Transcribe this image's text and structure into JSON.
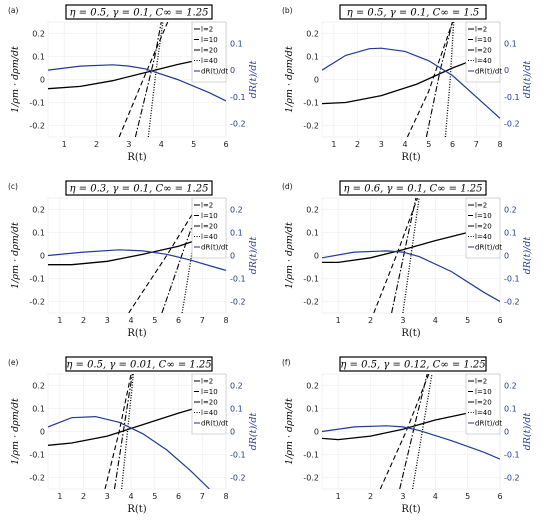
{
  "figure": {
    "right_axis_color": "#1f3a93",
    "left_axis_color": "#000000"
  },
  "chart_data": [
    {
      "type": "line",
      "panel_label": "(a)",
      "title": "η = 0.5, γ = 0.1, C∞ = 1.25",
      "xlabel": "R(t)",
      "ylabel_left": "1/ρm · dρm/dt",
      "ylabel_right": "dR(t)/dt",
      "xlim": [
        0.5,
        6
      ],
      "ylim_left": [
        -0.25,
        0.25
      ],
      "ylim_right": [
        -0.25,
        0.18
      ],
      "x_ticks": [
        1,
        2,
        3,
        4,
        5,
        6
      ],
      "y_ticks_left": [
        -0.2,
        -0.1,
        0,
        0.1,
        0.2
      ],
      "y_ticks_right": [
        -0.2,
        -0.1,
        0,
        0.1
      ],
      "legend": [
        "l=2",
        "l=10",
        "l=20",
        "l=40",
        "dR(t)/dt"
      ],
      "series": [
        {
          "name": "l=2",
          "style": "solid",
          "width": 1.3,
          "axis": "left",
          "x": [
            0.5,
            1.5,
            2.5,
            3.5,
            4.5,
            5.5,
            6.0
          ],
          "values": [
            -0.04,
            -0.03,
            -0.005,
            0.03,
            0.065,
            0.095,
            0.11
          ]
        },
        {
          "name": "l=10",
          "style": "dashed",
          "width": 1.1,
          "axis": "left",
          "x": [
            2.7,
            3.5,
            4.2
          ],
          "values": [
            -0.25,
            0.02,
            0.25
          ]
        },
        {
          "name": "l=20",
          "style": "dashdot",
          "width": 1.1,
          "axis": "left",
          "x": [
            3.2,
            3.8,
            4.0
          ],
          "values": [
            -0.25,
            0.1,
            0.25
          ]
        },
        {
          "name": "l=40",
          "style": "dotted",
          "width": 1.3,
          "axis": "left",
          "x": [
            3.6,
            3.85,
            4.05
          ],
          "values": [
            -0.25,
            0.05,
            0.25
          ]
        },
        {
          "name": "dR(t)/dt",
          "style": "solid",
          "width": 1.2,
          "axis": "right",
          "x": [
            0.5,
            1.5,
            2.5,
            3.0,
            3.5,
            4.5,
            5.5,
            6.0
          ],
          "values": [
            0.0,
            0.015,
            0.02,
            0.015,
            0.005,
            -0.035,
            -0.085,
            -0.115
          ]
        }
      ]
    },
    {
      "type": "line",
      "panel_label": "(b)",
      "title": "η = 0.5, γ = 0.1, C∞ = 1.5",
      "xlabel": "R(t)",
      "ylabel_left": "1/ρm · dρm/dt",
      "ylabel_right": "dR(t)/dt",
      "xlim": [
        0.5,
        8
      ],
      "ylim_left": [
        -0.25,
        0.25
      ],
      "ylim_right": [
        -0.25,
        0.18
      ],
      "x_ticks": [
        1,
        2,
        3,
        4,
        5,
        6,
        7,
        8
      ],
      "y_ticks_left": [
        -0.2,
        -0.1,
        0,
        0.1,
        0.2
      ],
      "y_ticks_right": [
        -0.2,
        -0.1,
        0,
        0.1
      ],
      "legend": [
        "l=2",
        "l=10",
        "l=20",
        "l=40",
        "dR(t)/dt"
      ],
      "series": [
        {
          "name": "l=2",
          "style": "solid",
          "width": 1.3,
          "axis": "left",
          "x": [
            0.5,
            1.5,
            3.0,
            4.5,
            6.0,
            7.0,
            8.0
          ],
          "values": [
            -0.105,
            -0.1,
            -0.07,
            -0.02,
            0.05,
            0.09,
            0.125
          ]
        },
        {
          "name": "l=10",
          "style": "dashed",
          "width": 1.1,
          "axis": "left",
          "x": [
            4.1,
            5.0,
            6.0
          ],
          "values": [
            -0.25,
            -0.05,
            0.25
          ]
        },
        {
          "name": "l=20",
          "style": "dashdot",
          "width": 1.1,
          "axis": "left",
          "x": [
            4.9,
            5.5,
            6.0
          ],
          "values": [
            -0.25,
            0.05,
            0.25
          ]
        },
        {
          "name": "l=40",
          "style": "dotted",
          "width": 1.3,
          "axis": "left",
          "x": [
            5.7,
            5.9,
            6.05
          ],
          "values": [
            -0.25,
            0.0,
            0.25
          ]
        },
        {
          "name": "dR(t)/dt",
          "style": "solid",
          "width": 1.2,
          "axis": "right",
          "x": [
            0.5,
            1.5,
            2.5,
            3.0,
            4.0,
            5.0,
            6.0,
            7.0,
            8.0
          ],
          "values": [
            0.0,
            0.055,
            0.08,
            0.082,
            0.07,
            0.035,
            -0.02,
            -0.1,
            -0.18
          ]
        }
      ]
    },
    {
      "type": "line",
      "panel_label": "(c)",
      "title": "η = 0.3, γ = 0.1, C∞ = 1.25",
      "xlabel": "R(t)",
      "ylabel_left": "1/ρm · dρm/dt",
      "ylabel_right": "dR(t)/dt",
      "xlim": [
        0.5,
        8
      ],
      "ylim_left": [
        -0.25,
        0.25
      ],
      "ylim_right": [
        -0.25,
        0.25
      ],
      "x_ticks": [
        1,
        2,
        3,
        4,
        5,
        6,
        7,
        8
      ],
      "y_ticks_left": [
        -0.2,
        -0.1,
        0,
        0.1,
        0.2
      ],
      "y_ticks_right": [
        -0.2,
        -0.1,
        0,
        0.1,
        0.2
      ],
      "legend": [
        "l=2",
        "l=10",
        "l=20",
        "l=40",
        "dR(t)/dt"
      ],
      "series": [
        {
          "name": "l=2",
          "style": "solid",
          "width": 1.3,
          "axis": "left",
          "x": [
            0.5,
            1.5,
            3.0,
            4.5,
            6.0,
            7.0,
            8.0
          ],
          "values": [
            -0.04,
            -0.04,
            -0.025,
            0.005,
            0.04,
            0.075,
            0.11
          ]
        },
        {
          "name": "l=10",
          "style": "dashed",
          "width": 1.1,
          "axis": "left",
          "x": [
            3.9,
            5.5,
            7.0
          ],
          "values": [
            -0.25,
            0.0,
            0.25
          ]
        },
        {
          "name": "l=20",
          "style": "dashdot",
          "width": 1.1,
          "axis": "left",
          "x": [
            5.3,
            6.3,
            7.0
          ],
          "values": [
            -0.25,
            0.05,
            0.25
          ]
        },
        {
          "name": "l=40",
          "style": "dotted",
          "width": 1.3,
          "axis": "left",
          "x": [
            6.15,
            6.55,
            7.0
          ],
          "values": [
            -0.25,
            0.0,
            0.25
          ]
        },
        {
          "name": "dR(t)/dt",
          "style": "solid",
          "width": 1.2,
          "axis": "right",
          "x": [
            0.5,
            2.0,
            3.5,
            4.5,
            5.5,
            6.5,
            7.5,
            8.0
          ],
          "values": [
            0.0,
            0.015,
            0.025,
            0.02,
            0.005,
            -0.02,
            -0.05,
            -0.065
          ]
        }
      ]
    },
    {
      "type": "line",
      "panel_label": "(d)",
      "title": "η = 0.6, γ = 0.1, C∞ = 1.25",
      "xlabel": "R(t)",
      "ylabel_left": "1/ρm · dρm/dt",
      "ylabel_right": "dR(t)/dt",
      "xlim": [
        0.5,
        6
      ],
      "ylim_left": [
        -0.25,
        0.25
      ],
      "ylim_right": [
        -0.25,
        0.25
      ],
      "x_ticks": [
        1,
        2,
        3,
        4,
        5,
        6
      ],
      "y_ticks_left": [
        -0.2,
        -0.1,
        0,
        0.1,
        0.2
      ],
      "y_ticks_right": [
        -0.2,
        -0.1,
        0,
        0.1,
        0.2
      ],
      "legend": [
        "l=2",
        "l=10",
        "l=20",
        "l=40",
        "dR(t)/dt"
      ],
      "series": [
        {
          "name": "l=2",
          "style": "solid",
          "width": 1.3,
          "axis": "left",
          "x": [
            0.5,
            1.0,
            2.0,
            3.0,
            4.0,
            5.0,
            6.0
          ],
          "values": [
            -0.03,
            -0.03,
            -0.01,
            0.025,
            0.065,
            0.1,
            0.12
          ]
        },
        {
          "name": "l=10",
          "style": "dashed",
          "width": 1.1,
          "axis": "left",
          "x": [
            2.1,
            2.8,
            3.45
          ],
          "values": [
            -0.25,
            0.0,
            0.25
          ]
        },
        {
          "name": "l=20",
          "style": "dashdot",
          "width": 1.1,
          "axis": "left",
          "x": [
            2.65,
            3.1,
            3.4
          ],
          "values": [
            -0.25,
            0.05,
            0.25
          ]
        },
        {
          "name": "l=40",
          "style": "dotted",
          "width": 1.3,
          "axis": "left",
          "x": [
            3.0,
            3.25,
            3.5
          ],
          "values": [
            -0.25,
            0.0,
            0.25
          ]
        },
        {
          "name": "dR(t)/dt",
          "style": "solid",
          "width": 1.2,
          "axis": "right",
          "x": [
            0.5,
            1.5,
            2.5,
            3.0,
            3.5,
            4.5,
            5.5,
            6.0
          ],
          "values": [
            -0.01,
            0.015,
            0.02,
            0.015,
            -0.005,
            -0.07,
            -0.16,
            -0.2
          ]
        }
      ]
    },
    {
      "type": "line",
      "panel_label": "(e)",
      "title": "η = 0.5, γ = 0.01, C∞ = 1.25",
      "xlabel": "R(t)",
      "ylabel_left": "1/ρm · dρm/dt",
      "ylabel_right": "dR(t)/dt",
      "xlim": [
        0.5,
        8
      ],
      "ylim_left": [
        -0.25,
        0.25
      ],
      "ylim_right": [
        -0.25,
        0.25
      ],
      "x_ticks": [
        1,
        2,
        3,
        4,
        5,
        6,
        7,
        8
      ],
      "y_ticks_left": [
        -0.2,
        -0.1,
        0,
        0.1,
        0.2
      ],
      "y_ticks_right": [
        -0.2,
        -0.1,
        0,
        0.1,
        0.2
      ],
      "legend": [
        "l=2",
        "l=10",
        "l=20",
        "l=40",
        "dR(t)/dt"
      ],
      "series": [
        {
          "name": "l=2",
          "style": "solid",
          "width": 1.3,
          "axis": "left",
          "x": [
            0.5,
            1.5,
            3.0,
            4.5,
            6.0,
            7.0,
            7.8
          ],
          "values": [
            -0.06,
            -0.05,
            -0.02,
            0.03,
            0.08,
            0.11,
            0.13
          ]
        },
        {
          "name": "l=10",
          "style": "dashed",
          "width": 1.1,
          "axis": "left",
          "x": [
            2.9,
            3.5,
            4.0
          ],
          "values": [
            -0.25,
            0.0,
            0.25
          ]
        },
        {
          "name": "l=20",
          "style": "dashdot",
          "width": 1.1,
          "axis": "left",
          "x": [
            3.3,
            3.75,
            4.05
          ],
          "values": [
            -0.25,
            0.05,
            0.25
          ]
        },
        {
          "name": "l=40",
          "style": "dotted",
          "width": 1.3,
          "axis": "left",
          "x": [
            3.6,
            3.85,
            4.1
          ],
          "values": [
            -0.25,
            0.0,
            0.25
          ]
        },
        {
          "name": "dR(t)/dt",
          "style": "solid",
          "width": 1.2,
          "axis": "right",
          "x": [
            0.5,
            1.5,
            2.5,
            3.5,
            4.5,
            5.5,
            6.5,
            7.3
          ],
          "values": [
            0.02,
            0.06,
            0.065,
            0.04,
            -0.01,
            -0.08,
            -0.17,
            -0.25
          ]
        }
      ]
    },
    {
      "type": "line",
      "panel_label": "(f)",
      "title": "η = 0.5, γ = 0.12, C∞ = 1.25",
      "xlabel": "R(t)",
      "ylabel_left": "1/ρm · dρm/dt",
      "ylabel_right": "dR(t)/dt",
      "xlim": [
        0.5,
        6
      ],
      "ylim_left": [
        -0.25,
        0.25
      ],
      "ylim_right": [
        -0.25,
        0.25
      ],
      "x_ticks": [
        1,
        2,
        3,
        4,
        5,
        6
      ],
      "y_ticks_left": [
        -0.2,
        -0.1,
        0,
        0.1,
        0.2
      ],
      "y_ticks_right": [
        -0.2,
        -0.1,
        0,
        0.1,
        0.2
      ],
      "legend": [
        "l=2",
        "l=10",
        "l=20",
        "l=40",
        "dR(t)/dt"
      ],
      "series": [
        {
          "name": "l=2",
          "style": "solid",
          "width": 1.3,
          "axis": "left",
          "x": [
            0.5,
            1.0,
            2.0,
            3.0,
            4.0,
            5.0,
            6.0
          ],
          "values": [
            -0.03,
            -0.035,
            -0.02,
            0.01,
            0.05,
            0.08,
            0.1
          ]
        },
        {
          "name": "l=10",
          "style": "dashed",
          "width": 1.1,
          "axis": "left",
          "x": [
            2.3,
            3.1,
            3.8
          ],
          "values": [
            -0.25,
            0.0,
            0.25
          ]
        },
        {
          "name": "l=20",
          "style": "dashdot",
          "width": 1.1,
          "axis": "left",
          "x": [
            2.9,
            3.4,
            3.75
          ],
          "values": [
            -0.25,
            0.05,
            0.25
          ]
        },
        {
          "name": "l=40",
          "style": "dotted",
          "width": 1.3,
          "axis": "left",
          "x": [
            3.3,
            3.6,
            3.9
          ],
          "values": [
            -0.25,
            0.0,
            0.25
          ]
        },
        {
          "name": "dR(t)/dt",
          "style": "solid",
          "width": 1.2,
          "axis": "right",
          "x": [
            0.5,
            1.5,
            2.5,
            3.0,
            3.5,
            4.5,
            5.5,
            6.0
          ],
          "values": [
            0.0,
            0.02,
            0.025,
            0.02,
            0.005,
            -0.04,
            -0.09,
            -0.12
          ]
        }
      ]
    }
  ]
}
